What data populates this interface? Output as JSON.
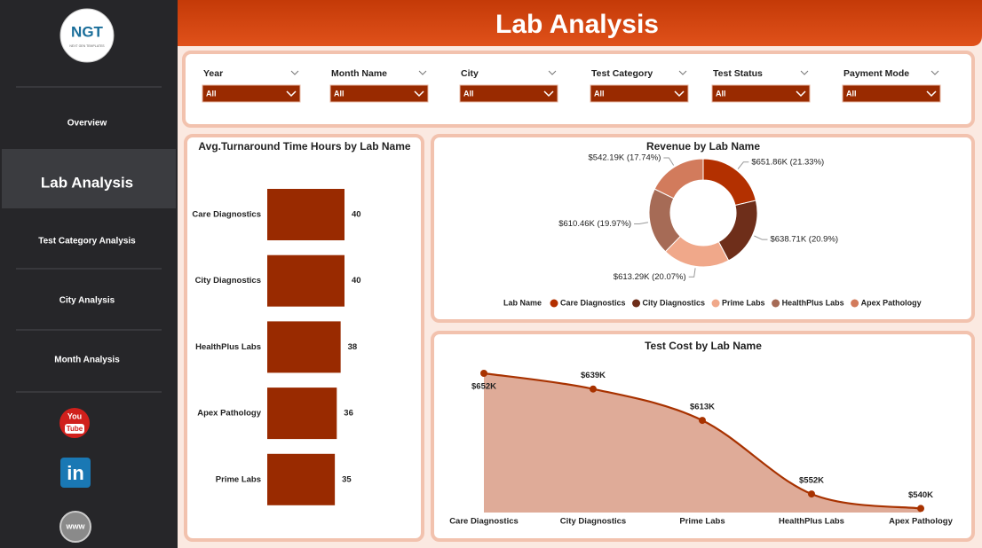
{
  "logo": {
    "text": "NGT",
    "subtitle": "NEXT GEN TEMPLATES"
  },
  "header": {
    "title": "Lab Analysis"
  },
  "nav": [
    "Overview",
    "Lab Analysis",
    "Test Category Analysis",
    "City Analysis",
    "Month Analysis"
  ],
  "social": {
    "youtube": [
      "You",
      "Tube"
    ],
    "linkedin": "in",
    "web": "www"
  },
  "filters": [
    {
      "label": "Year",
      "value": "All"
    },
    {
      "label": "Month Name",
      "value": "All"
    },
    {
      "label": "City",
      "value": "All"
    },
    {
      "label": "Test Category",
      "value": "All"
    },
    {
      "label": "Test Status",
      "value": "All"
    },
    {
      "label": "Payment Mode",
      "value": "All"
    }
  ],
  "chart_data": [
    {
      "type": "hbar",
      "title": "Avg.Turnaround Time Hours by Lab Name",
      "categories": [
        "Care Diagnostics",
        "City Diagnostics",
        "HealthPlus Labs",
        "Apex Pathology",
        "Prime Labs"
      ],
      "values": [
        40,
        40,
        38,
        36,
        35
      ],
      "color": "#992a00"
    },
    {
      "type": "donut",
      "title": "Revenue by Lab Name",
      "legend_title": "Lab Name",
      "categories": [
        "Care Diagnostics",
        "City Diagnostics",
        "Prime Labs",
        "HealthPlus Labs",
        "Apex Pathology"
      ],
      "values": [
        651.86,
        638.71,
        613.29,
        610.46,
        542.19
      ],
      "value_labels": [
        "$651.86K (21.33%)",
        "$638.71K (20.9%)",
        "$613.29K (20.07%)",
        "$610.46K (19.97%)",
        "$542.19K (17.74%)"
      ],
      "colors": [
        "#b33000",
        "#6e2e1a",
        "#f0a88a",
        "#a66b56",
        "#d27b5c"
      ]
    },
    {
      "type": "area",
      "title": "Test Cost by Lab Name",
      "categories": [
        "Care Diagnostics",
        "City Diagnostics",
        "Prime Labs",
        "HealthPlus Labs",
        "Apex Pathology"
      ],
      "values": [
        652,
        639,
        613,
        552,
        540
      ],
      "value_labels": [
        "$652K",
        "$639K",
        "$613K",
        "$552K",
        "$540K"
      ],
      "color": "#a83200",
      "fill": "#dfab98"
    }
  ]
}
